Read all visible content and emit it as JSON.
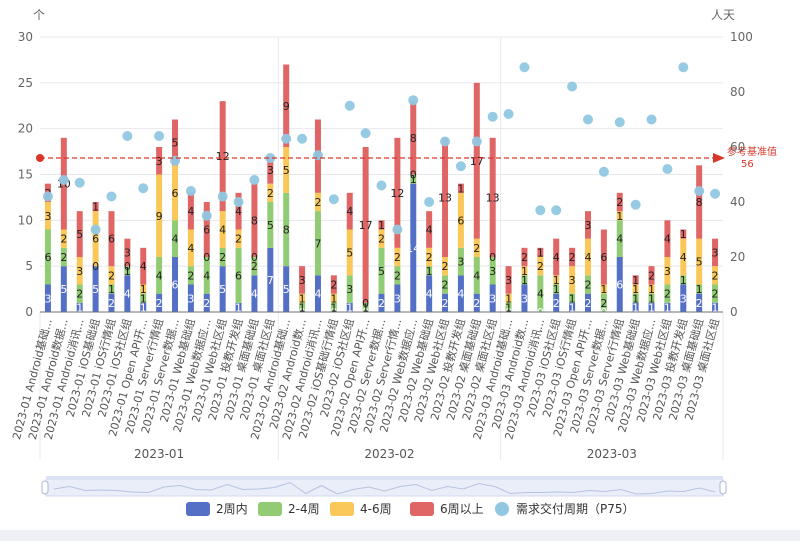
{
  "chart_data": {
    "type": "bar",
    "stacked": true,
    "left_axis": {
      "unit_label": "个",
      "ylim": [
        0,
        30
      ],
      "ticks": [
        0,
        5,
        10,
        15,
        20,
        25,
        30
      ]
    },
    "right_axis": {
      "unit_label": "人天",
      "ylim": [
        0,
        100
      ],
      "ticks": [
        0,
        20,
        40,
        60,
        80,
        100
      ]
    },
    "month_groups": [
      "2023-01",
      "2023-02",
      "2023-03"
    ],
    "categories": [
      "2023-01 Android基础...",
      "2023-01 Android数据...",
      "2023-01 Android消讯...",
      "2023-01 iOS基础组",
      "2023-01 iOS行情组",
      "2023-01 iOS社区组",
      "2023-01 Open API开...",
      "2023-01 Server行情组",
      "2023-01 Server数据...",
      "2023-01 Web基础组",
      "2023-01 Web数据应...",
      "2023-01 Web社区组",
      "2023-01 投教开发组",
      "2023-01 桌面基础组",
      "2023-01 桌面社区组",
      "2023-02 Android基础...",
      "2023-02 Android数...",
      "2023-02 Android消讯...",
      "2023-02 iOS基础行情组",
      "2023-02 iOS社区组",
      "2023-02 Open API开...",
      "2023-02 Server数据...",
      "2023-02 Server行情...",
      "2023-02 Web数据应...",
      "2023-02 Web基础组",
      "2023-02 Web社区组",
      "2023-02 投教开发组",
      "2023-02 桌面基础组",
      "2023-02 桌面社区组",
      "2023-03 Android基础...",
      "2023-03 Android数...",
      "2023-03 Android消讯...",
      "2023-03 iOS社区组",
      "2023-03 iOS行情组",
      "2023-03 Open API开...",
      "2023-03 Server数据...",
      "2023-03 Server行情组",
      "2023-03 Web基础组",
      "2023-03 Web数据应...",
      "2023-03 Web社区组",
      "2023-03 投教开发组",
      "2023-03 桌面基础组",
      "2023-03 桌面社区组"
    ],
    "series": [
      {
        "name": "2周内",
        "color": "#5470c6",
        "values": [
          3,
          5,
          1,
          5,
          2,
          4,
          1,
          2,
          6,
          3,
          2,
          5,
          1,
          4,
          7,
          5,
          0,
          4,
          0,
          1,
          0,
          2,
          3,
          14,
          4,
          2,
          4,
          2,
          3,
          0,
          3,
          0,
          2,
          1,
          2,
          0,
          6,
          1,
          1,
          1,
          3,
          2,
          1
        ]
      },
      {
        "name": "2-4周",
        "color": "#91cc75",
        "values": [
          6,
          2,
          2,
          0,
          1,
          1,
          1,
          4,
          4,
          2,
          4,
          2,
          6,
          2,
          5,
          8,
          1,
          7,
          1,
          3,
          1,
          5,
          2,
          1,
          1,
          2,
          3,
          4,
          3,
          1,
          1,
          4,
          1,
          1,
          2,
          2,
          4,
          1,
          1,
          2,
          1,
          1,
          2
        ]
      },
      {
        "name": "4-6周",
        "color": "#fac858",
        "values": [
          3,
          2,
          3,
          6,
          2,
          0,
          1,
          9,
          6,
          4,
          0,
          4,
          2,
          0,
          2,
          5,
          1,
          2,
          1,
          5,
          0,
          2,
          2,
          0,
          2,
          2,
          6,
          2,
          0,
          1,
          1,
          2,
          1,
          3,
          4,
          1,
          1,
          1,
          1,
          3,
          4,
          5,
          2
        ]
      },
      {
        "name": "6周以上",
        "color": "#e06666",
        "values": [
          2,
          10,
          5,
          1,
          6,
          3,
          4,
          3,
          5,
          4,
          6,
          12,
          4,
          8,
          3,
          9,
          3,
          8,
          2,
          4,
          17,
          1,
          12,
          8,
          4,
          13,
          1,
          17,
          13,
          3,
          2,
          1,
          4,
          2,
          3,
          6,
          2,
          1,
          2,
          4,
          1,
          8,
          3
        ]
      }
    ],
    "scatter_series": {
      "name": "需求交付周期（P75）",
      "color": "#91c7e1",
      "axis": "right",
      "values": [
        42,
        48,
        47,
        30,
        42,
        64,
        45,
        64,
        55,
        44,
        35,
        42,
        40,
        48,
        56,
        63,
        63,
        57,
        41,
        75,
        65,
        46,
        30,
        77,
        40,
        62,
        53,
        62,
        71,
        72,
        89,
        37,
        37,
        82,
        70,
        51,
        69,
        39,
        70,
        52,
        89,
        44,
        43
      ]
    },
    "markline": {
      "label": "参考基准值",
      "value_label": "56",
      "value": 56,
      "axis": "right",
      "color": "#d9362b"
    },
    "legend_position": "bottom-center"
  }
}
